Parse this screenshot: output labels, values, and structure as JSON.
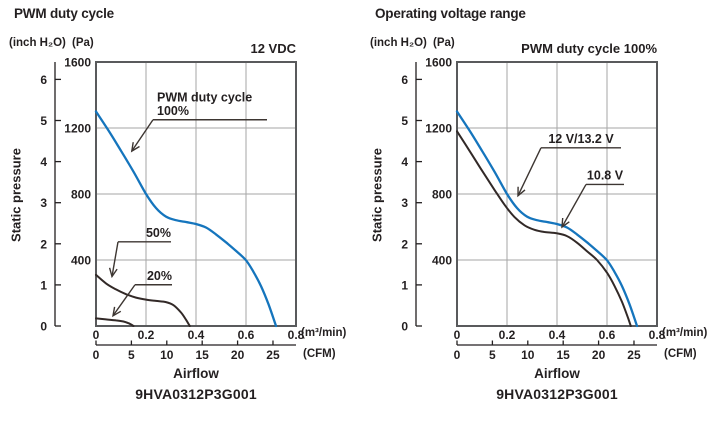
{
  "colors": {
    "blue": "#1575bd",
    "dark": "#322927",
    "grid": "#a6a6a6",
    "frame": "#595a5c",
    "text": "#231f20",
    "leader": "#3d3632"
  },
  "chart_data": [
    {
      "type": "line",
      "title": "PWM duty cycle",
      "condition_label": "12 VDC",
      "xlabel": "Airflow",
      "ylabel": "Static pressure",
      "model": "9HVA0312P3G001",
      "grid": true,
      "legend_position": "none",
      "x_axis": {
        "unit": "(m³/min)",
        "ticks": [
          "0",
          "0.2",
          "0.4",
          "0.6",
          "0.8"
        ],
        "range": [
          0,
          0.8
        ]
      },
      "x_axis_secondary": {
        "unit": "(CFM)",
        "ticks": [
          "0",
          "5",
          "10",
          "15",
          "20",
          "25"
        ],
        "m3min_per_cfm": 0.0283168
      },
      "y_axis": {
        "unit": "(Pa)",
        "ticks": [
          "400",
          "800",
          "1200",
          "1600"
        ],
        "range": [
          0,
          1600
        ]
      },
      "y_axis_secondary": {
        "unit": "(inch H₂O)",
        "ticks": [
          "0",
          "1",
          "2",
          "3",
          "4",
          "5",
          "6"
        ],
        "pa_per_inch": 249.089
      },
      "series": [
        {
          "name": "PWM duty cycle 100%",
          "color": "#1575bd",
          "points": [
            [
              0,
              1300
            ],
            [
              0.05,
              1185
            ],
            [
              0.1,
              1062
            ],
            [
              0.15,
              935
            ],
            [
              0.2,
              800
            ],
            [
              0.24,
              715
            ],
            [
              0.28,
              663
            ],
            [
              0.32,
              641
            ],
            [
              0.36,
              630
            ],
            [
              0.4,
              618
            ],
            [
              0.44,
              597
            ],
            [
              0.48,
              555
            ],
            [
              0.52,
              507
            ],
            [
              0.56,
              455
            ],
            [
              0.6,
              398
            ],
            [
              0.63,
              328
            ],
            [
              0.66,
              242
            ],
            [
              0.69,
              132
            ],
            [
              0.72,
              0
            ]
          ]
        },
        {
          "name": "50%",
          "color": "#322927",
          "points": [
            [
              0,
              310
            ],
            [
              0.04,
              258
            ],
            [
              0.08,
              222
            ],
            [
              0.12,
              193
            ],
            [
              0.16,
              172
            ],
            [
              0.2,
              160
            ],
            [
              0.24,
              152
            ],
            [
              0.28,
              145
            ],
            [
              0.31,
              126
            ],
            [
              0.34,
              82
            ],
            [
              0.36,
              38
            ],
            [
              0.375,
              0
            ]
          ]
        },
        {
          "name": "20%",
          "color": "#322927",
          "points": [
            [
              0,
              46
            ],
            [
              0.04,
              40
            ],
            [
              0.08,
              34
            ],
            [
              0.11,
              27
            ],
            [
              0.13,
              17
            ],
            [
              0.15,
              0
            ]
          ]
        }
      ],
      "annotations": [
        {
          "lines": [
            "PWM duty cycle",
            "100%"
          ],
          "align": "left",
          "underline": {
            "x1": 0.228,
            "x2": 0.684,
            "y": 1250
          },
          "arrow_to": [
            0.143,
            1060
          ]
        },
        {
          "lines": [
            "50%"
          ],
          "align": "right",
          "underline": {
            "x1": 0.088,
            "x2": 0.3,
            "y": 510
          },
          "arrow_to": [
            0.064,
            300
          ]
        },
        {
          "lines": [
            "20%"
          ],
          "align": "right",
          "underline": {
            "x1": 0.156,
            "x2": 0.304,
            "y": 250
          },
          "arrow_to": [
            0.068,
            62
          ]
        }
      ]
    },
    {
      "type": "line",
      "title": "Operating voltage range",
      "condition_label": "PWM duty cycle 100%",
      "xlabel": "Airflow",
      "ylabel": "Static pressure",
      "model": "9HVA0312P3G001",
      "grid": true,
      "legend_position": "none",
      "x_axis": {
        "unit": "(m³/min)",
        "ticks": [
          "0",
          "0.2",
          "0.4",
          "0.6",
          "0.8"
        ],
        "range": [
          0,
          0.8
        ]
      },
      "x_axis_secondary": {
        "unit": "(CFM)",
        "ticks": [
          "0",
          "5",
          "10",
          "15",
          "20",
          "25"
        ],
        "m3min_per_cfm": 0.0283168
      },
      "y_axis": {
        "unit": "(Pa)",
        "ticks": [
          "400",
          "800",
          "1200",
          "1600"
        ],
        "range": [
          0,
          1600
        ]
      },
      "y_axis_secondary": {
        "unit": "(inch H₂O)",
        "ticks": [
          "0",
          "1",
          "2",
          "3",
          "4",
          "5",
          "6"
        ],
        "pa_per_inch": 249.089
      },
      "series": [
        {
          "name": "12 V/13.2 V",
          "color": "#1575bd",
          "points": [
            [
              0,
              1300
            ],
            [
              0.05,
              1185
            ],
            [
              0.1,
              1062
            ],
            [
              0.15,
              935
            ],
            [
              0.2,
              800
            ],
            [
              0.24,
              715
            ],
            [
              0.28,
              663
            ],
            [
              0.32,
              641
            ],
            [
              0.36,
              630
            ],
            [
              0.4,
              618
            ],
            [
              0.44,
              597
            ],
            [
              0.48,
              555
            ],
            [
              0.52,
              507
            ],
            [
              0.56,
              455
            ],
            [
              0.6,
              398
            ],
            [
              0.63,
              328
            ],
            [
              0.66,
              242
            ],
            [
              0.69,
              132
            ],
            [
              0.72,
              0
            ]
          ]
        },
        {
          "name": "10.8 V",
          "color": "#322927",
          "points": [
            [
              0,
              1180
            ],
            [
              0.05,
              1062
            ],
            [
              0.1,
              942
            ],
            [
              0.15,
              825
            ],
            [
              0.19,
              735
            ],
            [
              0.23,
              660
            ],
            [
              0.27,
              610
            ],
            [
              0.31,
              583
            ],
            [
              0.35,
              570
            ],
            [
              0.4,
              562
            ],
            [
              0.44,
              545
            ],
            [
              0.48,
              505
            ],
            [
              0.52,
              453
            ],
            [
              0.56,
              400
            ],
            [
              0.6,
              323
            ],
            [
              0.63,
              243
            ],
            [
              0.66,
              146
            ],
            [
              0.685,
              45
            ],
            [
              0.695,
              0
            ]
          ]
        }
      ],
      "annotations": [
        {
          "lines": [
            "12 V/13.2 V"
          ],
          "align": "center",
          "underline": {
            "x1": 0.336,
            "x2": 0.656,
            "y": 1080
          },
          "arrow_to": [
            0.244,
            790
          ]
        },
        {
          "lines": [
            "10.8 V"
          ],
          "align": "center",
          "underline": {
            "x1": 0.516,
            "x2": 0.668,
            "y": 858
          },
          "arrow_to": [
            0.42,
            600
          ]
        }
      ]
    }
  ]
}
